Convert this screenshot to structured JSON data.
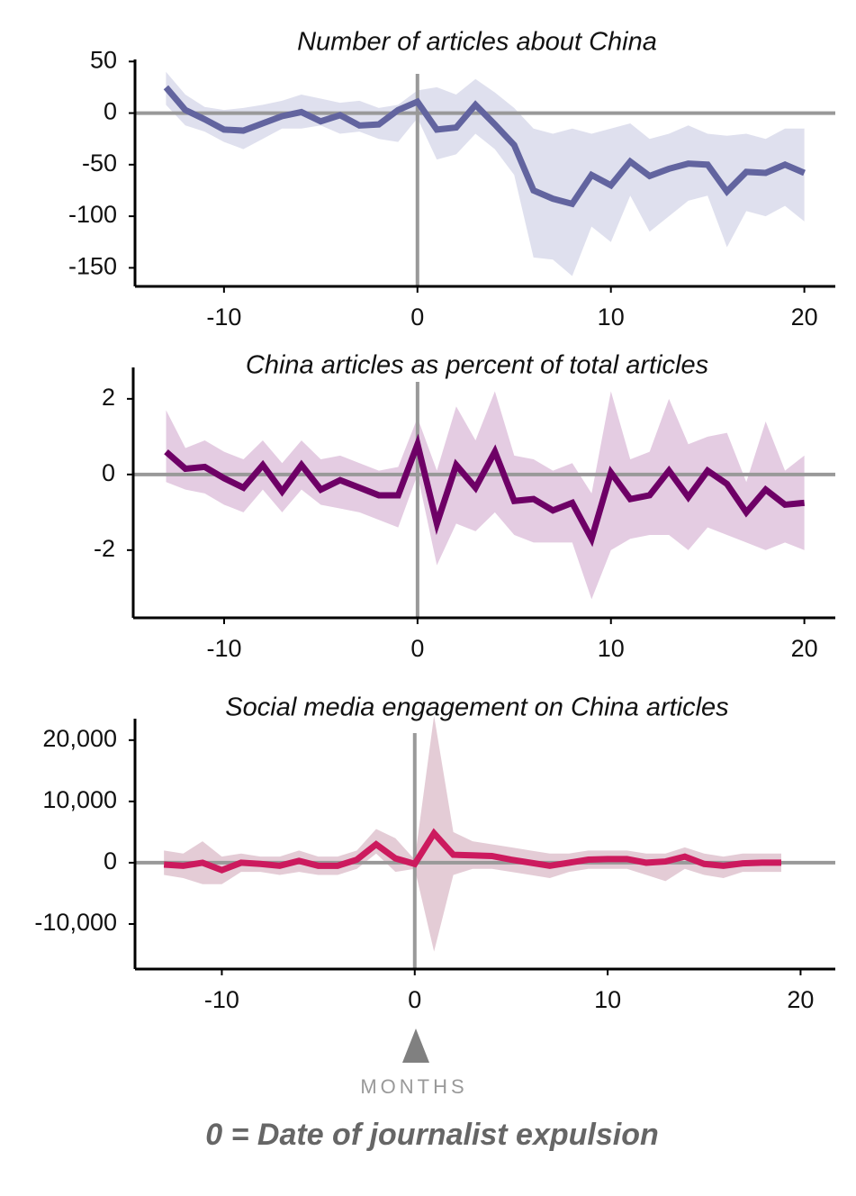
{
  "chart_data": [
    {
      "type": "line",
      "title": "Number of articles about China",
      "color": "#62649f",
      "band_color": "#dfe0ee",
      "x": [
        -13,
        -12,
        -11,
        -10,
        -9,
        -8,
        -7,
        -6,
        -5,
        -4,
        -3,
        -2,
        -1,
        0,
        1,
        2,
        3,
        4,
        5,
        6,
        7,
        8,
        9,
        10,
        11,
        12,
        13,
        14,
        15,
        16,
        17,
        18,
        19,
        20
      ],
      "values": [
        25,
        3,
        -6,
        -16,
        -17,
        -10,
        -3,
        1,
        -8,
        -2,
        -12,
        -11,
        3,
        11,
        -16,
        -14,
        8,
        -11,
        -31,
        -75,
        -83,
        -88,
        -60,
        -70,
        -47,
        -61,
        -54,
        -49,
        -50,
        -76,
        -57,
        -58,
        -50,
        -58
      ],
      "upper": [
        40,
        18,
        6,
        3,
        5,
        8,
        12,
        18,
        14,
        10,
        12,
        5,
        8,
        22,
        25,
        18,
        33,
        20,
        5,
        -15,
        -20,
        -15,
        -20,
        -15,
        -10,
        -25,
        -20,
        -12,
        -20,
        -22,
        -20,
        -25,
        -15,
        -15
      ],
      "lower": [
        8,
        -12,
        -18,
        -28,
        -35,
        -25,
        -15,
        -15,
        -12,
        -20,
        -18,
        -25,
        -28,
        -5,
        -45,
        -40,
        -20,
        -35,
        -60,
        -140,
        -142,
        -158,
        -110,
        -125,
        -80,
        -115,
        -100,
        -85,
        -80,
        -130,
        -95,
        -100,
        -90,
        -105
      ],
      "xlim": [
        -14.6,
        21.6
      ],
      "xticks": [
        -10,
        0,
        10,
        20
      ],
      "ylim": [
        -168,
        52
      ],
      "yticks": [
        -150,
        -100,
        -50,
        0,
        50
      ],
      "hlines": [
        0
      ],
      "vlines": [
        0
      ]
    },
    {
      "type": "line",
      "title": "China articles as percent of total articles",
      "color": "#6e0066",
      "band_color": "#e4cce2",
      "x": [
        -13,
        -12,
        -11,
        -10,
        -9,
        -8,
        -7,
        -6,
        -5,
        -4,
        -3,
        -2,
        -1,
        0,
        1,
        2,
        3,
        4,
        5,
        6,
        7,
        8,
        9,
        10,
        11,
        12,
        13,
        14,
        15,
        16,
        17,
        18,
        19,
        20
      ],
      "values": [
        0.6,
        0.15,
        0.2,
        -0.1,
        -0.35,
        0.25,
        -0.45,
        0.25,
        -0.4,
        -0.15,
        -0.35,
        -0.55,
        -0.55,
        0.8,
        -1.3,
        0.25,
        -0.35,
        0.6,
        -0.7,
        -0.65,
        -0.95,
        -0.75,
        -1.7,
        0.05,
        -0.65,
        -0.55,
        0.1,
        -0.6,
        0.1,
        -0.25,
        -1.0,
        -0.4,
        -0.8,
        -0.75
      ],
      "upper": [
        1.7,
        0.7,
        0.9,
        0.6,
        0.4,
        0.9,
        0.3,
        0.9,
        0.4,
        0.5,
        0.3,
        0.1,
        0.2,
        1.5,
        0.1,
        1.8,
        0.9,
        2.2,
        0.5,
        0.4,
        0.1,
        0.3,
        -0.5,
        2.2,
        0.4,
        0.6,
        2.0,
        0.8,
        1.0,
        1.1,
        -0.2,
        1.4,
        0.1,
        0.5
      ],
      "lower": [
        -0.2,
        -0.4,
        -0.5,
        -0.8,
        -1.0,
        -0.4,
        -1.0,
        -0.4,
        -0.8,
        -0.9,
        -1.0,
        -1.2,
        -1.4,
        0.0,
        -2.4,
        -1.3,
        -1.5,
        -1.0,
        -1.6,
        -1.8,
        -1.8,
        -1.8,
        -3.3,
        -2.0,
        -1.7,
        -1.6,
        -1.6,
        -2.0,
        -1.4,
        -1.6,
        -1.8,
        -2.0,
        -1.8,
        -2.0
      ],
      "xlim": [
        -14.7,
        21.6
      ],
      "xticks": [
        -10,
        0,
        10,
        20
      ],
      "ylim": [
        -3.79,
        2.83
      ],
      "yticks": [
        -2,
        0,
        2
      ],
      "hlines": [
        0
      ],
      "vlines": [
        0
      ]
    },
    {
      "type": "line",
      "title": "Social media engagement on China articles",
      "color": "#cc1a5e",
      "band_color": "#e4ccd6",
      "x": [
        -13,
        -12,
        -11,
        -10,
        -9,
        -8,
        -7,
        -6,
        -5,
        -4,
        -3,
        -2,
        -1,
        0,
        1,
        2,
        3,
        4,
        5,
        6,
        7,
        8,
        9,
        10,
        11,
        12,
        13,
        14,
        15,
        16,
        17,
        18,
        19
      ],
      "values": [
        -300,
        -500,
        0,
        -1200,
        0,
        -200,
        -500,
        300,
        -500,
        -500,
        500,
        3000,
        700,
        -200,
        4800,
        1300,
        1200,
        1100,
        500,
        0,
        -500,
        0,
        500,
        600,
        600,
        0,
        200,
        1000,
        -200,
        -500,
        -100,
        0,
        0
      ],
      "upper": [
        2000,
        1500,
        3500,
        1000,
        1500,
        1000,
        1000,
        2000,
        1000,
        1000,
        2000,
        5500,
        4000,
        500,
        24000,
        5000,
        3500,
        3000,
        2500,
        2000,
        1500,
        1500,
        2000,
        2000,
        2000,
        1500,
        1500,
        2500,
        1500,
        1000,
        1500,
        1500,
        1500
      ],
      "lower": [
        -2000,
        -2500,
        -3500,
        -3500,
        -1500,
        -1500,
        -2000,
        -1500,
        -2000,
        -2000,
        -1000,
        1500,
        -1500,
        -1000,
        -14500,
        -2000,
        -1000,
        -1000,
        -1500,
        -2000,
        -2500,
        -1500,
        -1000,
        -1000,
        -1000,
        -2000,
        -3000,
        -1000,
        -2000,
        -2500,
        -1500,
        -1500,
        -1500
      ],
      "xlim": [
        -14.5,
        21.8
      ],
      "xticks": [
        -10,
        0,
        10,
        20
      ],
      "ylim": [
        -17350,
        23500
      ],
      "yticks": [
        {
          "value": -10000,
          "label": "-10,000"
        },
        0,
        {
          "value": 10000,
          "label": "10,000"
        },
        {
          "value": 20000,
          "label": "20,000"
        }
      ],
      "hlines": [
        0
      ],
      "vlines": [
        0
      ],
      "xlabel": "MONTHS",
      "note": "0 = Date of journalist expulsion"
    }
  ]
}
